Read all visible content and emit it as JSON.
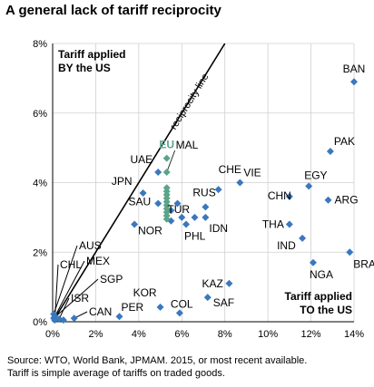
{
  "chart_data": {
    "type": "scatter",
    "title": "A general lack of tariff reciprocity",
    "xlabel": "Tariff applied TO the US",
    "ylabel": "Tariff applied BY the US",
    "xlim": [
      0,
      14
    ],
    "ylim": [
      0,
      8
    ],
    "x_ticks": [
      "0%",
      "2%",
      "4%",
      "6%",
      "8%",
      "10%",
      "12%",
      "14%"
    ],
    "y_ticks": [
      "0%",
      "2%",
      "4%",
      "6%",
      "8%"
    ],
    "grid": true,
    "axis_annotations": {
      "y": [
        "Tariff applied",
        "BY the US"
      ],
      "x": [
        "Tariff applied",
        "TO the US"
      ]
    },
    "reference_line": {
      "label": "reciprocity line",
      "equation": "y = x"
    },
    "colors": {
      "points": "#3a78bd",
      "eu_points": "#5ba389",
      "eu_label": "#5ba389",
      "grid": "#d0d0d0"
    },
    "points": [
      {
        "label": "BAN",
        "x": 14.0,
        "y": 6.9
      },
      {
        "label": "PAK",
        "x": 12.9,
        "y": 4.9
      },
      {
        "label": "EGY",
        "x": 11.9,
        "y": 3.9
      },
      {
        "label": "ARG",
        "x": 12.8,
        "y": 3.5
      },
      {
        "label": "CHN",
        "x": 11.0,
        "y": 3.6
      },
      {
        "label": "VIE",
        "x": 8.7,
        "y": 4.0
      },
      {
        "label": "CHE",
        "x": 7.7,
        "y": 3.8
      },
      {
        "label": "RUS",
        "x": 7.1,
        "y": 3.3
      },
      {
        "label": "IDN",
        "x": 7.1,
        "y": 3.0
      },
      {
        "label": "THA",
        "x": 11.0,
        "y": 2.8
      },
      {
        "label": "IND",
        "x": 11.6,
        "y": 2.4
      },
      {
        "label": "BRA",
        "x": 13.8,
        "y": 2.0
      },
      {
        "label": "NGA",
        "x": 12.1,
        "y": 1.7
      },
      {
        "label": "KAZ",
        "x": 8.2,
        "y": 1.1
      },
      {
        "label": "SAF",
        "x": 7.2,
        "y": 0.7
      },
      {
        "label": "COL",
        "x": 5.9,
        "y": 0.25
      },
      {
        "label": "KOR",
        "x": 5.0,
        "y": 0.42
      },
      {
        "label": "PER",
        "x": 3.1,
        "y": 0.15
      },
      {
        "label": "UAE",
        "x": 4.9,
        "y": 4.3
      },
      {
        "label": "JPN",
        "x": 4.2,
        "y": 3.7
      },
      {
        "label": "SAU",
        "x": 4.9,
        "y": 3.4
      },
      {
        "label": "NOR",
        "x": 3.8,
        "y": 2.8
      },
      {
        "label": "TUR",
        "x": 5.5,
        "y": 3.2
      },
      {
        "label": "PHL",
        "x": 6.2,
        "y": 2.8
      },
      {
        "label": "AUS",
        "x": 0.05,
        "y": 0.22
      },
      {
        "label": "MEX",
        "x": 0.1,
        "y": 0.15
      },
      {
        "label": "SGP",
        "x": 0.05,
        "y": 0.1
      },
      {
        "label": "CHL",
        "x": 0.1,
        "y": 0.05
      },
      {
        "label": "ISR",
        "x": 0.3,
        "y": 0.08
      },
      {
        "label": "CAN",
        "x": 1.0,
        "y": 0.1
      },
      {
        "label": "",
        "x": 0.5,
        "y": 0.05
      },
      {
        "label": "",
        "x": 6.0,
        "y": 3.0
      },
      {
        "label": "",
        "x": 6.6,
        "y": 3.0
      },
      {
        "label": "",
        "x": 5.5,
        "y": 2.9
      },
      {
        "label": "",
        "x": 5.8,
        "y": 3.4
      }
    ],
    "eu_group": {
      "label": "EU",
      "points": [
        {
          "label": "",
          "x": 5.3,
          "y": 4.7
        },
        {
          "label": "MAL",
          "x": 5.3,
          "y": 4.3
        },
        {
          "label": "",
          "x": 5.3,
          "y": 3.85
        },
        {
          "label": "",
          "x": 5.3,
          "y": 3.75
        },
        {
          "label": "",
          "x": 5.3,
          "y": 3.65
        },
        {
          "label": "",
          "x": 5.3,
          "y": 3.55
        },
        {
          "label": "",
          "x": 5.3,
          "y": 3.45
        },
        {
          "label": "",
          "x": 5.3,
          "y": 3.35
        },
        {
          "label": "",
          "x": 5.3,
          "y": 3.25
        },
        {
          "label": "",
          "x": 5.3,
          "y": 3.15
        },
        {
          "label": "",
          "x": 5.3,
          "y": 3.05
        },
        {
          "label": "",
          "x": 5.3,
          "y": 2.95
        }
      ]
    },
    "source": [
      "Source: WTO, World Bank, JPMAM. 2015, or most recent available.",
      "Tariff is simple average of tariffs on traded goods."
    ]
  }
}
